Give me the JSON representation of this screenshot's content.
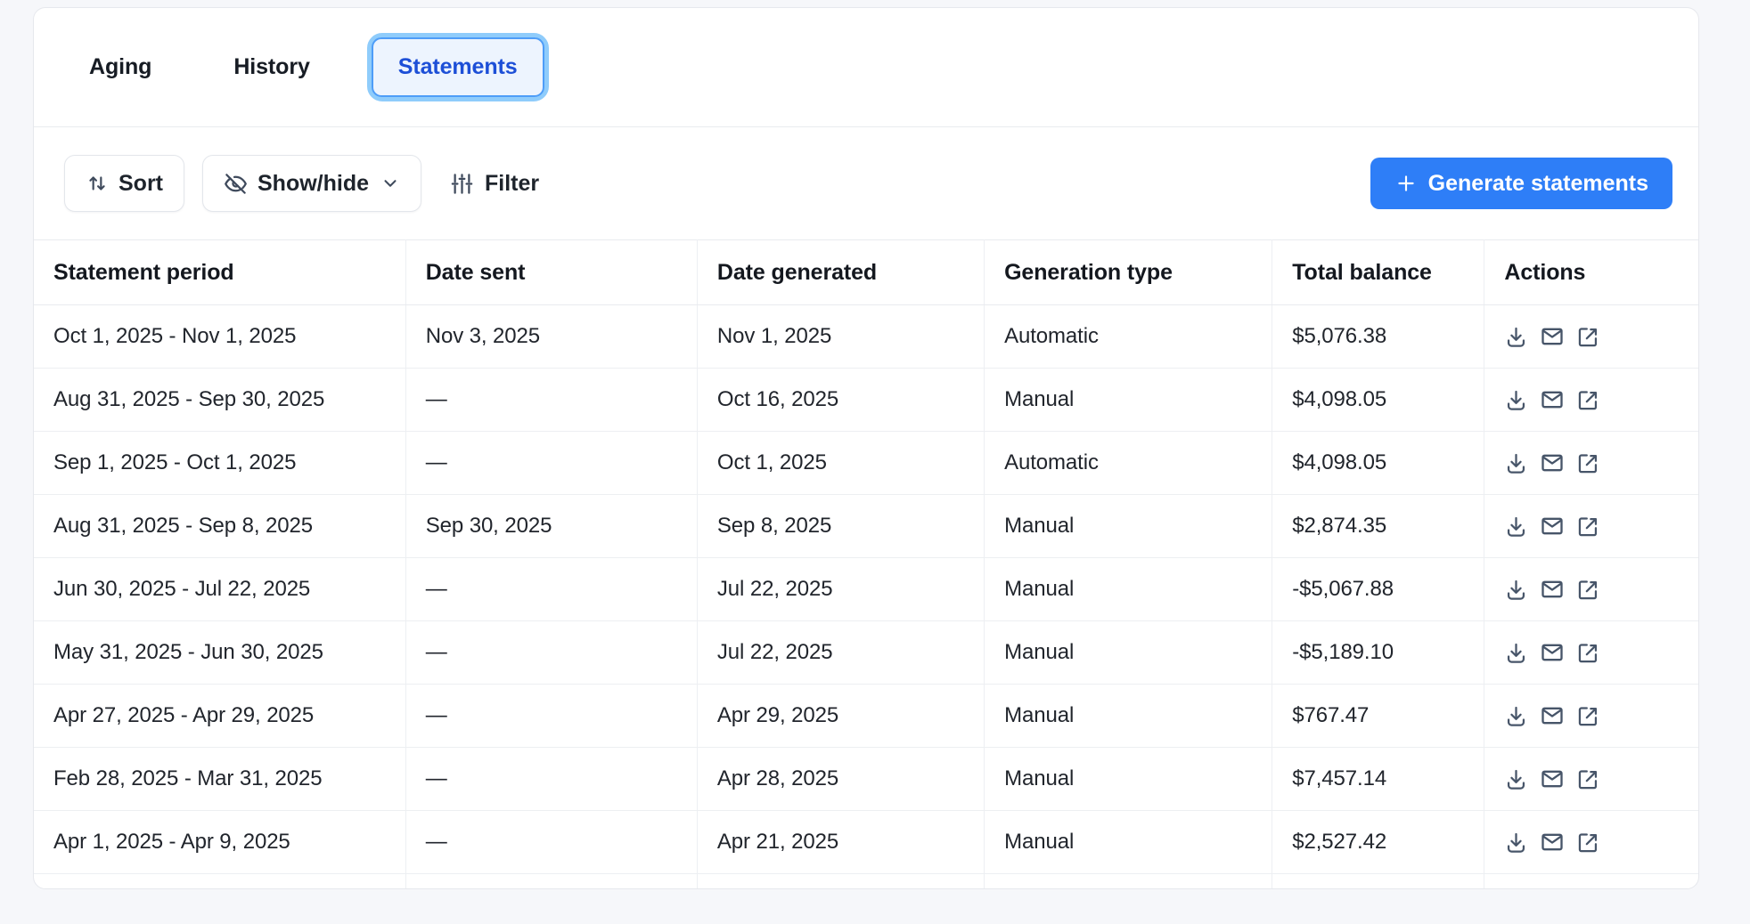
{
  "tabs": {
    "items": [
      {
        "label": "Aging",
        "active": false
      },
      {
        "label": "History",
        "active": false
      },
      {
        "label": "Statements",
        "active": true
      }
    ]
  },
  "toolbar": {
    "sort": {
      "label": "Sort",
      "icon": "arrows-up-down-icon"
    },
    "show_hide": {
      "label": "Show/hide",
      "icon": "eye-off-icon",
      "chevron_icon": "chevron-down-icon"
    },
    "filter": {
      "label": "Filter",
      "icon": "sliders-icon"
    },
    "generate": {
      "label": "Generate statements",
      "icon": "plus-icon"
    }
  },
  "table": {
    "columns": [
      "Statement period",
      "Date sent",
      "Date generated",
      "Generation type",
      "Total balance",
      "Actions"
    ],
    "rows": [
      {
        "period": "Oct 1, 2025 - Nov 1, 2025",
        "date_sent": "Nov 3, 2025",
        "date_generated": "Nov 1, 2025",
        "generation_type": "Automatic",
        "total_balance": "$5,076.38"
      },
      {
        "period": "Aug 31, 2025 - Sep 30, 2025",
        "date_sent": "—",
        "date_generated": "Oct 16, 2025",
        "generation_type": "Manual",
        "total_balance": "$4,098.05"
      },
      {
        "period": "Sep 1, 2025 - Oct 1, 2025",
        "date_sent": "—",
        "date_generated": "Oct 1, 2025",
        "generation_type": "Automatic",
        "total_balance": "$4,098.05"
      },
      {
        "period": "Aug 31, 2025 - Sep 8, 2025",
        "date_sent": "Sep 30, 2025",
        "date_generated": "Sep 8, 2025",
        "generation_type": "Manual",
        "total_balance": "$2,874.35"
      },
      {
        "period": "Jun 30, 2025 - Jul 22, 2025",
        "date_sent": "—",
        "date_generated": "Jul 22, 2025",
        "generation_type": "Manual",
        "total_balance": "-$5,067.88"
      },
      {
        "period": "May 31, 2025 - Jun 30, 2025",
        "date_sent": "—",
        "date_generated": "Jul 22, 2025",
        "generation_type": "Manual",
        "total_balance": "-$5,189.10"
      },
      {
        "period": "Apr 27, 2025 - Apr 29, 2025",
        "date_sent": "—",
        "date_generated": "Apr 29, 2025",
        "generation_type": "Manual",
        "total_balance": "$767.47"
      },
      {
        "period": "Feb 28, 2025 - Mar 31, 2025",
        "date_sent": "—",
        "date_generated": "Apr 28, 2025",
        "generation_type": "Manual",
        "total_balance": "$7,457.14"
      },
      {
        "period": "Apr 1, 2025 - Apr 9, 2025",
        "date_sent": "—",
        "date_generated": "Apr 21, 2025",
        "generation_type": "Manual",
        "total_balance": "$2,527.42"
      }
    ],
    "row_actions": [
      "download-icon",
      "mail-icon",
      "external-link-icon"
    ]
  },
  "colors": {
    "accent_blue": "#2e7ef7",
    "active_tab_text": "#1d4fd7",
    "active_tab_bg": "#edf4fe",
    "active_tab_ring": "#8fccfb",
    "active_tab_border": "#4e9df8",
    "icon_slate": "#475569",
    "page_bg": "#f6f7fa",
    "card_border": "#e6e8ed"
  }
}
